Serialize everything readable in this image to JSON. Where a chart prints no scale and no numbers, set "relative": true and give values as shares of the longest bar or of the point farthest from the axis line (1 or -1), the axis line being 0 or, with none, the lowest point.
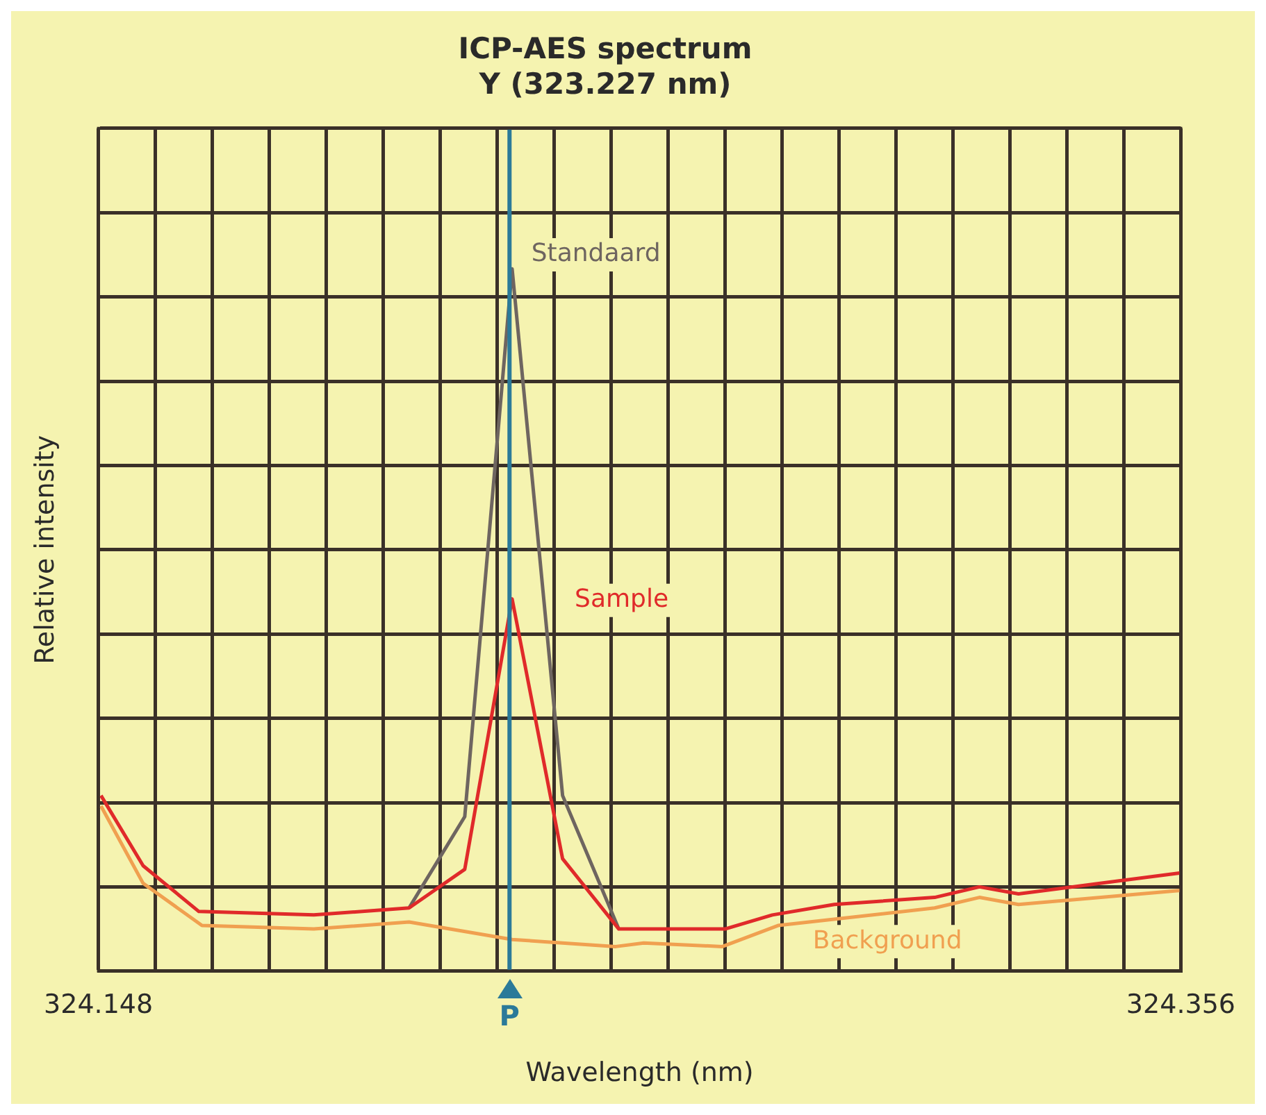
{
  "chart_data": {
    "type": "line",
    "title": "ICP-AES spectrum",
    "subtitle": "Y (323.227 nm)",
    "xlabel": "Wavelength (nm)",
    "ylabel": "Relative intensity",
    "relative": true,
    "xlim": [
      324.148,
      324.356
    ],
    "xticks": [
      324.148,
      {
        "value": 324.1589,
        "label": null
      },
      {
        "value": 324.1699,
        "label": null
      },
      {
        "value": 324.1808,
        "label": null
      },
      {
        "value": 324.1918,
        "label": null
      },
      {
        "value": 324.2027,
        "label": null
      },
      {
        "value": 324.2137,
        "label": null
      },
      {
        "value": 324.2246,
        "label": null
      },
      {
        "value": 324.2356,
        "label": null
      },
      {
        "value": 324.2465,
        "label": null
      },
      {
        "value": 324.2575,
        "label": null
      },
      {
        "value": 324.2684,
        "label": null
      },
      {
        "value": 324.2794,
        "label": null
      },
      {
        "value": 324.2903,
        "label": null
      },
      {
        "value": 324.3013,
        "label": null
      },
      {
        "value": 324.3122,
        "label": null
      },
      {
        "value": 324.3232,
        "label": null
      },
      {
        "value": 324.3341,
        "label": null
      },
      {
        "value": 324.3451,
        "label": null
      },
      324.356
    ],
    "grid": true,
    "legend": false,
    "marker": "none",
    "line_style": "solid",
    "ref_lines": [
      {
        "axis": "x",
        "value": 324.227,
        "label": "P",
        "color": "#2b7a99"
      }
    ],
    "series": [
      {
        "name": "Standaard",
        "color": "#6e6560",
        "x": [
          324.2077,
          324.2184,
          324.2275,
          324.2372,
          324.248
        ],
        "values": [
          0.09,
          0.22,
          1,
          0.25,
          0.06
        ]
      },
      {
        "name": "Sample",
        "color": "#e02a2a",
        "x": [
          324.1485,
          324.1566,
          324.1673,
          324.1894,
          324.2077,
          324.2184,
          324.2275,
          324.2372,
          324.248,
          324.2528,
          324.2684,
          324.2775,
          324.2894,
          324.3087,
          324.3173,
          324.3248,
          324.356
        ],
        "values": [
          0.25,
          0.15,
          0.085,
          0.08,
          0.09,
          0.145,
          0.53,
          0.16,
          0.06,
          0.06,
          0.06,
          0.08,
          0.095,
          0.105,
          0.12,
          0.11,
          0.14
        ]
      },
      {
        "name": "Background",
        "color": "#f0a050",
        "x": [
          324.1485,
          324.1566,
          324.1679,
          324.1894,
          324.2077,
          324.2275,
          324.2474,
          324.2528,
          324.2679,
          324.2786,
          324.3087,
          324.3173,
          324.3248,
          324.356
        ],
        "values": [
          0.235,
          0.125,
          0.065,
          0.06,
          0.07,
          0.045,
          0.035,
          0.04,
          0.035,
          0.065,
          0.09,
          0.105,
          0.095,
          0.115
        ]
      }
    ]
  }
}
